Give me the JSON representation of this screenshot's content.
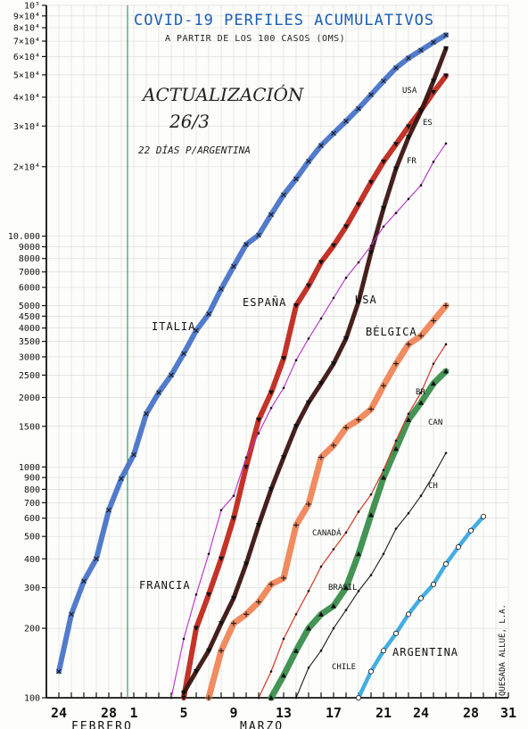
{
  "chart_data": {
    "type": "line",
    "title": "COVID-19 PERFILES ACUMULATIVOS",
    "subtitle": "A PARTIR DE LOS 100 CASOS (OMS)",
    "note_line1": "ACTUALIZACIÓN",
    "note_line2": "26/3",
    "note_line3": "22 DÍAS P/ARGENTINA",
    "author": "QUESADA ALLUÉ, L.A.",
    "x_unit": "day (24 Feb = 0)",
    "xlim": [
      -1,
      36
    ],
    "ylim": [
      100,
      100000
    ],
    "yscale": "log",
    "x_ticks": [
      {
        "x": 0,
        "label": "24"
      },
      {
        "x": 4,
        "label": "28"
      },
      {
        "x": 6,
        "label": "1"
      },
      {
        "x": 10,
        "label": "5"
      },
      {
        "x": 14,
        "label": "9"
      },
      {
        "x": 18,
        "label": "13"
      },
      {
        "x": 22,
        "label": "17"
      },
      {
        "x": 26,
        "label": "21"
      },
      {
        "x": 29,
        "label": "24"
      },
      {
        "x": 33,
        "label": "28"
      },
      {
        "x": 36,
        "label": "31"
      }
    ],
    "month_labels": [
      {
        "x": 1,
        "label": "FEBRERO"
      },
      {
        "x": 14.5,
        "label": "MARZO"
      }
    ],
    "y_ticks": [
      {
        "v": 100,
        "label": "100"
      },
      {
        "v": 200,
        "label": "200"
      },
      {
        "v": 300,
        "label": "300"
      },
      {
        "v": 400,
        "label": "400"
      },
      {
        "v": 500,
        "label": "500"
      },
      {
        "v": 600,
        "label": "600"
      },
      {
        "v": 700,
        "label": "700"
      },
      {
        "v": 800,
        "label": "800"
      },
      {
        "v": 900,
        "label": "900"
      },
      {
        "v": 1000,
        "label": "1000"
      },
      {
        "v": 1500,
        "label": "1500"
      },
      {
        "v": 2000,
        "label": "2000"
      },
      {
        "v": 2500,
        "label": "2500"
      },
      {
        "v": 3000,
        "label": "3000"
      },
      {
        "v": 3500,
        "label": "3500"
      },
      {
        "v": 4000,
        "label": "4000"
      },
      {
        "v": 4500,
        "label": "4500"
      },
      {
        "v": 5000,
        "label": "5000"
      },
      {
        "v": 6000,
        "label": "6000"
      },
      {
        "v": 7000,
        "label": "7000"
      },
      {
        "v": 8000,
        "label": "8000"
      },
      {
        "v": 9000,
        "label": "9000"
      },
      {
        "v": 10000,
        "label": "10.000"
      },
      {
        "v": 20000,
        "label": "2×10⁴"
      },
      {
        "v": 30000,
        "label": "3×10⁴"
      },
      {
        "v": 40000,
        "label": "4×10⁴"
      },
      {
        "v": 50000,
        "label": "5×10⁴"
      },
      {
        "v": 60000,
        "label": "6×10⁴"
      },
      {
        "v": 70000,
        "label": "7×10⁴"
      },
      {
        "v": 80000,
        "label": "8×10⁴"
      },
      {
        "v": 90000,
        "label": "9×10⁴"
      },
      {
        "v": 100000,
        "label": "10⁵"
      }
    ],
    "vline_x": 5.5,
    "series": [
      {
        "name": "ITALIA",
        "color": "#4a74c9",
        "marker": "x",
        "x": [
          0,
          1,
          2,
          3,
          4,
          5,
          6,
          7,
          8,
          9,
          10,
          11,
          12,
          13,
          14,
          15,
          16,
          17,
          18,
          19,
          20,
          21,
          22,
          23,
          24,
          25,
          26,
          27,
          28,
          29,
          30,
          31
        ],
        "y": [
          130,
          230,
          320,
          400,
          650,
          890,
          1130,
          1700,
          2100,
          2500,
          3100,
          3900,
          4600,
          5900,
          7400,
          9200,
          10100,
          12400,
          15100,
          17700,
          21100,
          24700,
          27900,
          31500,
          35700,
          41000,
          47000,
          53600,
          59100,
          63900,
          69200,
          74400
        ]
      },
      {
        "name": "ESPAÑA",
        "color": "#c0281c",
        "marker": "v",
        "x": [
          10,
          11,
          12,
          13,
          14,
          15,
          16,
          17,
          18,
          19,
          20,
          21,
          22,
          23,
          24,
          25,
          26,
          27,
          28,
          29,
          30,
          31
        ],
        "y": [
          100,
          200,
          280,
          400,
          600,
          1000,
          1600,
          2100,
          2950,
          5000,
          6100,
          7700,
          9100,
          11000,
          13700,
          17100,
          21000,
          25000,
          29800,
          35100,
          42000,
          49500
        ]
      },
      {
        "name": "USA",
        "color": "#3b1410",
        "marker": "v",
        "x": [
          10,
          11,
          12,
          13,
          14,
          15,
          16,
          17,
          18,
          19,
          20,
          21,
          22,
          23,
          24,
          25,
          26,
          27,
          28,
          29,
          30,
          31
        ],
        "y": [
          105,
          130,
          160,
          210,
          270,
          380,
          560,
          800,
          1100,
          1500,
          1900,
          2300,
          2800,
          3600,
          5200,
          8500,
          13200,
          19600,
          26800,
          34700,
          47000,
          65000
        ],
        "label": "USA"
      },
      {
        "name": "FRANCIA",
        "color": "#b833c9",
        "marker": "dot",
        "x": [
          9,
          10,
          11,
          12,
          13,
          14,
          15,
          16,
          17,
          18,
          19,
          20,
          21,
          22,
          23,
          24,
          25,
          26,
          27,
          28,
          29,
          30,
          31
        ],
        "y": [
          100,
          180,
          280,
          420,
          650,
          750,
          1100,
          1400,
          1800,
          2200,
          2900,
          3600,
          4400,
          5400,
          6600,
          7700,
          9100,
          11000,
          12600,
          14500,
          16600,
          21000,
          25200
        ],
        "label": "FR"
      },
      {
        "name": "BÉLGICA",
        "color": "#f08557",
        "marker": "+",
        "x": [
          12,
          13,
          14,
          15,
          16,
          17,
          18,
          19,
          20,
          21,
          22,
          23,
          24,
          25,
          26,
          27,
          28,
          29,
          30,
          31
        ],
        "y": [
          100,
          160,
          210,
          230,
          260,
          310,
          330,
          560,
          690,
          1100,
          1240,
          1480,
          1600,
          1780,
          2250,
          2800,
          3400,
          3700,
          4300,
          5000
        ]
      },
      {
        "name": "BRASIL",
        "color": "#3a8e4c",
        "marker": "triangle",
        "x": [
          17,
          18,
          19,
          20,
          21,
          22,
          23,
          24,
          25,
          26,
          27,
          28,
          29,
          30,
          31
        ],
        "y": [
          100,
          125,
          160,
          200,
          230,
          250,
          300,
          420,
          620,
          900,
          1200,
          1600,
          1900,
          2300,
          2600
        ],
        "label": "BR"
      },
      {
        "name": "CANADÁ",
        "color": "#d23a28",
        "marker": "dot",
        "x": [
          16,
          17,
          18,
          19,
          20,
          21,
          22,
          23,
          24,
          25,
          26,
          27,
          28,
          29,
          30,
          31
        ],
        "y": [
          100,
          130,
          180,
          230,
          290,
          370,
          440,
          520,
          640,
          760,
          970,
          1300,
          1700,
          2100,
          2800,
          3400
        ],
        "label": "CAN"
      },
      {
        "name": "CHILE",
        "color": "#111111",
        "marker": "dot",
        "x": [
          19,
          20,
          21,
          22,
          23,
          24,
          25,
          26,
          27,
          28,
          29,
          30,
          31
        ],
        "y": [
          100,
          135,
          160,
          200,
          240,
          290,
          340,
          420,
          540,
          630,
          750,
          920,
          1150
        ],
        "label": "CH"
      },
      {
        "name": "ARGENTINA",
        "color": "#39a9e2",
        "marker": "o",
        "x": [
          24,
          25,
          26,
          27,
          28,
          29,
          30,
          31,
          32,
          33,
          34
        ],
        "y": [
          100,
          130,
          160,
          190,
          230,
          270,
          310,
          380,
          450,
          530,
          610
        ]
      }
    ]
  }
}
